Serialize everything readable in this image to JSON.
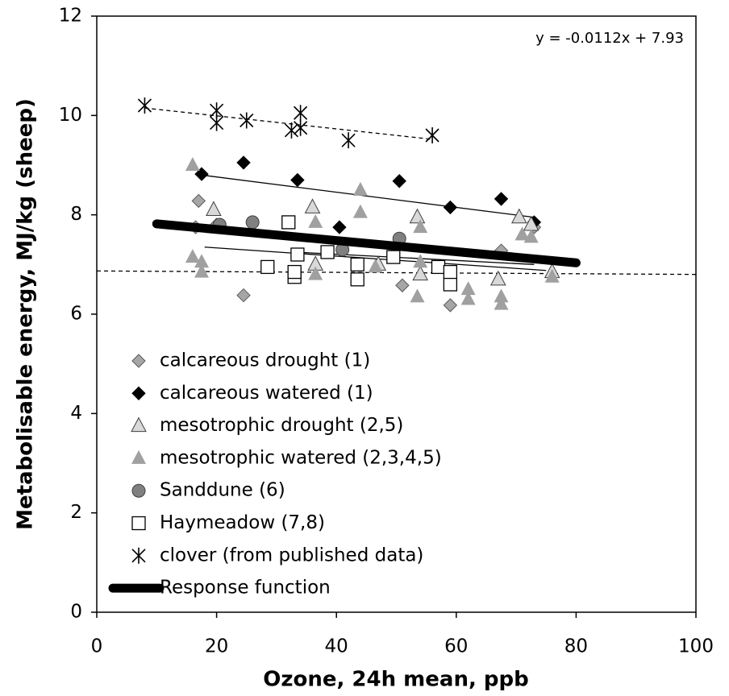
{
  "chart_data": {
    "type": "scatter",
    "xlabel": "Ozone, 24h mean, ppb",
    "ylabel": "Metabolisable energy, MJ/kg (sheep)",
    "annotation": "y = -0.0112x + 7.93",
    "xlim": [
      0,
      100
    ],
    "xticks": [
      0,
      20,
      40,
      60,
      80,
      100
    ],
    "ylim": [
      0,
      12
    ],
    "yticks": [
      0,
      2,
      4,
      6,
      8,
      10,
      12
    ],
    "series": [
      {
        "name": "calcareous drought (1)",
        "marker": "diamond",
        "color": "#a6a6a6",
        "x": [
          17,
          24.5,
          51,
          59,
          67.5,
          73,
          16.5,
          20
        ],
        "values": [
          8.28,
          6.38,
          6.58,
          6.18,
          7.28,
          7.75,
          7.75,
          7.8
        ]
      },
      {
        "name": "calcareous watered (1)",
        "marker": "diamond",
        "color": "#000000",
        "x": [
          17.5,
          24.5,
          33.5,
          40.5,
          50.5,
          59,
          67.5,
          73
        ],
        "values": [
          8.82,
          9.05,
          8.7,
          7.75,
          8.68,
          8.15,
          8.32,
          7.85
        ]
      },
      {
        "name": "mesotrophic drought (2,5)",
        "marker": "triangle-open",
        "color": "#d9d9d9",
        "x": [
          19.5,
          36,
          53.5,
          70.5,
          72.5,
          54,
          67,
          76,
          47,
          36.5
        ],
        "values": [
          8.1,
          8.15,
          7.95,
          7.95,
          7.8,
          6.8,
          6.7,
          6.85,
          7.0,
          7.0
        ]
      },
      {
        "name": "mesotrophic watered (2,3,4,5)",
        "marker": "triangle",
        "color": "#a0a0a0",
        "x": [
          16,
          16,
          17.5,
          17.5,
          36.5,
          36.5,
          44,
          44,
          46.5,
          54,
          54,
          53.5,
          62,
          62,
          67.5,
          67.5,
          71,
          72.5,
          76
        ],
        "values": [
          9.0,
          7.15,
          7.05,
          6.85,
          7.85,
          6.8,
          8.5,
          8.05,
          6.95,
          7.75,
          7.05,
          6.35,
          6.5,
          6.3,
          6.35,
          6.2,
          7.6,
          7.55,
          6.75
        ]
      },
      {
        "name": "Sanddune (6)",
        "marker": "circle",
        "color": "#808080",
        "x": [
          20.5,
          26,
          50.5,
          41
        ],
        "values": [
          7.8,
          7.85,
          7.52,
          7.3
        ]
      },
      {
        "name": "Haymeadow (7,8)",
        "marker": "square",
        "color": "#ffffff",
        "x": [
          28.5,
          32,
          33,
          33,
          33.5,
          38.5,
          43.5,
          43.5,
          49.5,
          57,
          59,
          59
        ],
        "values": [
          6.95,
          7.85,
          6.75,
          6.85,
          7.2,
          7.25,
          7.0,
          6.7,
          7.15,
          6.95,
          6.6,
          6.85
        ]
      },
      {
        "name": "clover (from published data)",
        "marker": "asterisk",
        "color": "#000000",
        "x": [
          8,
          20,
          20,
          25,
          32.5,
          34,
          34,
          42,
          56
        ],
        "values": [
          10.2,
          10.1,
          9.85,
          9.9,
          9.7,
          10.05,
          9.75,
          9.5,
          9.6
        ]
      },
      {
        "name": "Response function",
        "marker": "line",
        "color": "#000000",
        "x": [
          10,
          80
        ],
        "values": [
          7.818,
          7.034
        ]
      }
    ],
    "trend_lines": [
      {
        "x": [
          0,
          100
        ],
        "values": [
          6.87,
          6.8
        ],
        "style": "dashed"
      },
      {
        "x": [
          8,
          56
        ],
        "values": [
          10.15,
          9.52
        ],
        "style": "dashed"
      },
      {
        "x": [
          17.5,
          73
        ],
        "values": [
          8.8,
          7.95
        ],
        "style": "solid"
      },
      {
        "x": [
          16,
          72
        ],
        "values": [
          7.7,
          7.05
        ],
        "style": "solid"
      },
      {
        "x": [
          18,
          75
        ],
        "values": [
          7.35,
          6.88
        ],
        "style": "solid"
      },
      {
        "x": [
          33,
          73
        ],
        "values": [
          7.25,
          7.0
        ],
        "style": "solid"
      }
    ]
  }
}
